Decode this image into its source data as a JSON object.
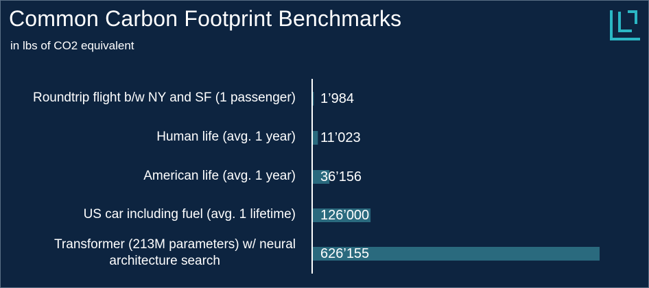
{
  "header": {
    "title": "Common Carbon Footprint Benchmarks",
    "subtitle": "in lbs of CO2 equivalent"
  },
  "colors": {
    "background": "#0d2440",
    "bar": "#2a6a7e",
    "logo": "#2bb7c4",
    "text": "#ffffff"
  },
  "chart_data": {
    "type": "bar",
    "orientation": "horizontal",
    "title": "Common Carbon Footprint Benchmarks",
    "subtitle": "in lbs of CO2 equivalent",
    "categories": [
      "Roundtrip flight b/w NY and SF (1 passenger)",
      "Human life (avg. 1 year)",
      "American life (avg. 1 year)",
      "US car including fuel (avg. 1 lifetime)",
      "Transformer (213M parameters) w/ neural architecture search"
    ],
    "category_lines": [
      [
        "Roundtrip flight b/w NY and SF (1 passenger)"
      ],
      [
        "Human life (avg. 1 year)"
      ],
      [
        "American life (avg. 1 year)"
      ],
      [
        "US car including fuel (avg. 1 lifetime)"
      ],
      [
        "Transformer (213M parameters) w/ neural",
        "architecture search"
      ]
    ],
    "values": [
      1984,
      11023,
      36156,
      126000,
      626155
    ],
    "value_labels": [
      "1’984",
      "11’023",
      "36’156",
      "126’000",
      "626’155"
    ],
    "xlim": [
      0,
      626155
    ],
    "grid": false,
    "legend": "none"
  }
}
